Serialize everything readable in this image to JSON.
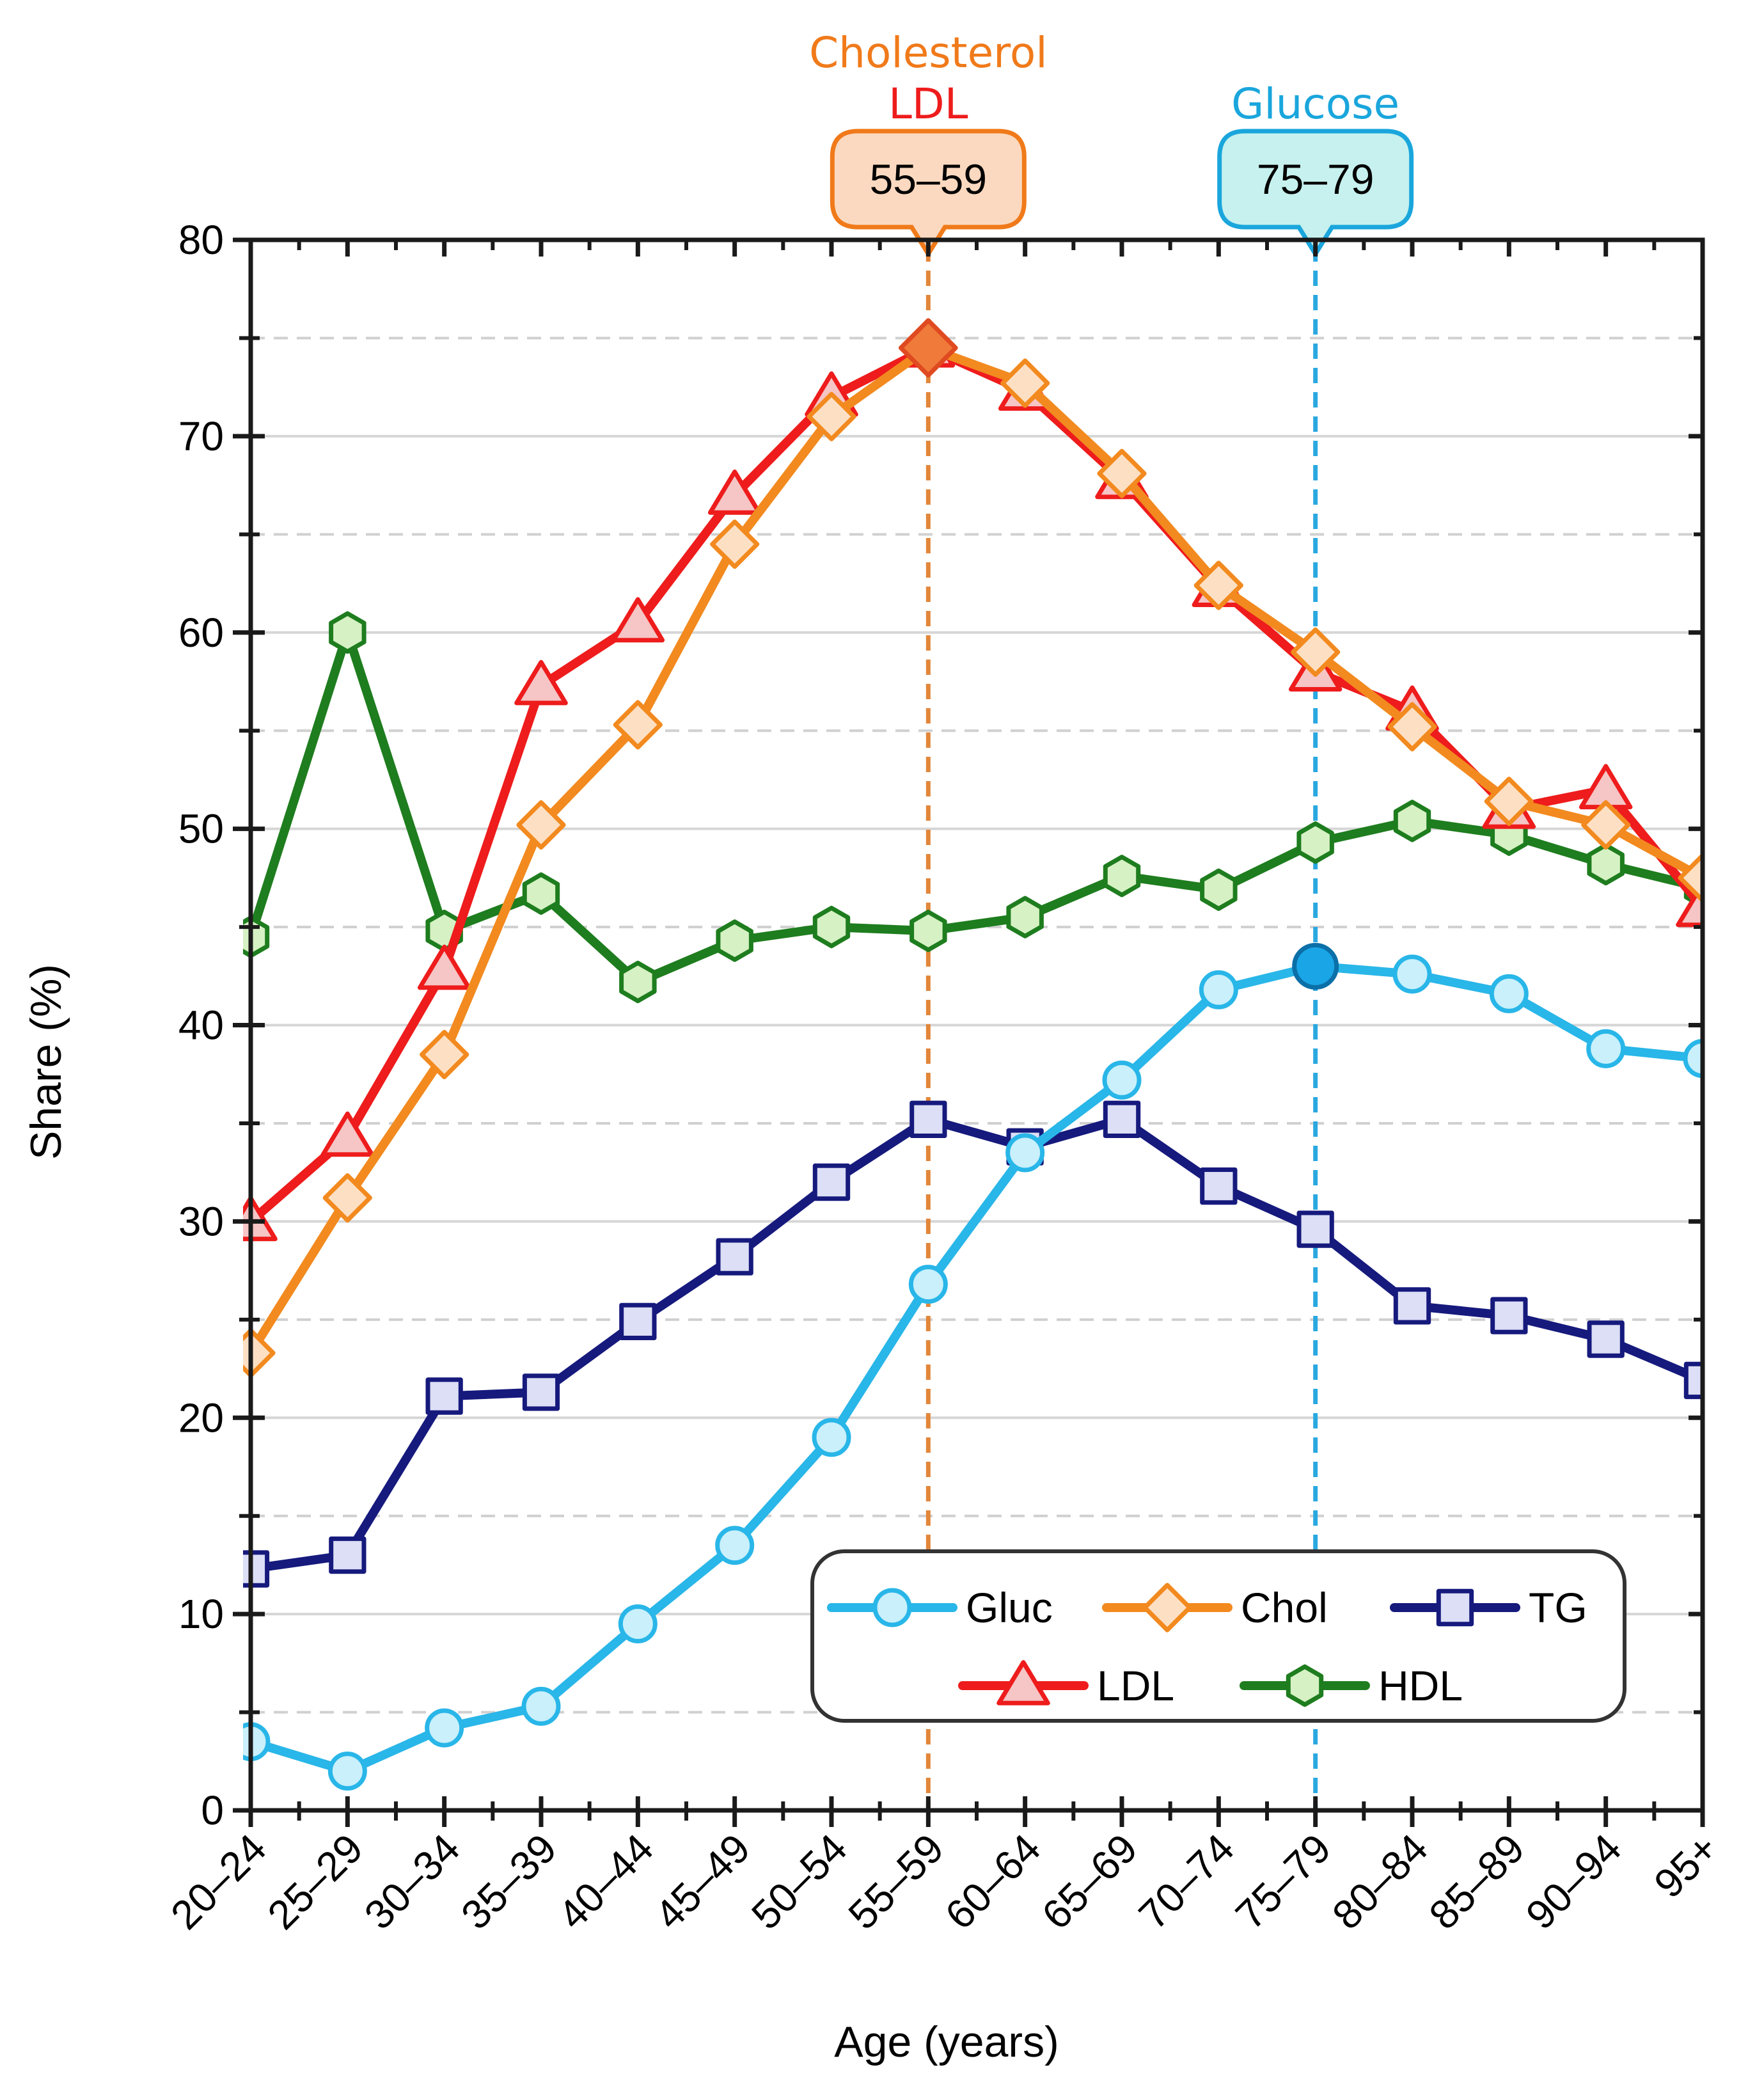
{
  "chart_data": {
    "type": "line",
    "xlabel": "Age (years)",
    "ylabel": "Share (%)",
    "ylim": [
      0,
      80
    ],
    "yticks": [
      0,
      10,
      20,
      30,
      40,
      50,
      60,
      70,
      80
    ],
    "categories": [
      "20–24",
      "25–29",
      "30–34",
      "35–39",
      "40–44",
      "45–49",
      "50–54",
      "55–59",
      "60–64",
      "65–69",
      "70–74",
      "75–79",
      "80–84",
      "85–89",
      "90–94",
      "95+"
    ],
    "series": [
      {
        "key": "gluc",
        "name": "Gluc",
        "marker": "circle",
        "color": "#29b6e8",
        "fill": "#c9f0fb",
        "values": [
          3.5,
          2.0,
          4.2,
          5.3,
          9.5,
          13.5,
          19.0,
          26.8,
          33.5,
          37.2,
          41.8,
          43.0,
          42.6,
          41.6,
          38.8,
          38.3
        ]
      },
      {
        "key": "chol",
        "name": "Chol",
        "marker": "diamond",
        "color": "#f28a1f",
        "fill": "#fde0c4",
        "values": [
          23.3,
          31.2,
          38.5,
          50.2,
          55.3,
          64.5,
          71.0,
          74.5,
          72.7,
          68.1,
          62.4,
          59.0,
          55.2,
          51.4,
          50.2,
          47.5
        ]
      },
      {
        "key": "tg",
        "name": "TG",
        "marker": "square",
        "color": "#161a7d",
        "fill": "#dcdff5",
        "values": [
          12.3,
          13.0,
          21.1,
          21.3,
          24.9,
          28.2,
          32.0,
          35.2,
          33.8,
          35.2,
          31.8,
          29.6,
          25.7,
          25.2,
          24.0,
          21.9
        ]
      },
      {
        "key": "ldl",
        "name": "LDL",
        "marker": "triangle",
        "color": "#ee1c1c",
        "fill": "#f6c5c5",
        "values": [
          30.0,
          34.3,
          42.8,
          57.3,
          60.5,
          67.0,
          72.0,
          74.5,
          72.3,
          67.8,
          62.3,
          58.0,
          56.0,
          51.0,
          52.0,
          46.0
        ]
      },
      {
        "key": "hdl",
        "name": "HDL",
        "marker": "hexagon",
        "color": "#1e7d1e",
        "fill": "#d6f1c4",
        "values": [
          44.5,
          60.0,
          44.8,
          46.7,
          42.2,
          44.3,
          45.0,
          44.8,
          45.5,
          47.6,
          46.9,
          49.3,
          50.4,
          49.7,
          48.2,
          47.0
        ]
      }
    ],
    "annotations": [
      {
        "key": "chol-ldl",
        "titles": [
          "Cholesterol",
          "LDL"
        ],
        "title_colors": [
          "#f07a1a",
          "#ee1c1c"
        ],
        "label": "55–59",
        "category": "55–59",
        "line_color": "#e2863a",
        "box_fill": "#fbd9c0",
        "box_stroke": "#f07a1a"
      },
      {
        "key": "glucose",
        "titles": [
          "Glucose"
        ],
        "title_colors": [
          "#1aa6dc"
        ],
        "label": "75–79",
        "category": "75–79",
        "line_color": "#2aa8e0",
        "box_fill": "#c6f1ee",
        "box_stroke": "#1aa6dc"
      }
    ],
    "highlights": [
      {
        "series": "chol",
        "category": "55–59",
        "fill": "#f07a3a",
        "stroke": "#e04a20"
      },
      {
        "series": "gluc",
        "category": "75–79",
        "fill": "#1aa6e6",
        "stroke": "#0b6fa8"
      }
    ],
    "legend": {
      "position": "bottom-right",
      "rows": [
        [
          "gluc",
          "chol",
          "tg"
        ],
        [
          "ldl",
          "hdl"
        ]
      ]
    },
    "grid": {
      "major": true,
      "minor_dashed": true
    }
  }
}
